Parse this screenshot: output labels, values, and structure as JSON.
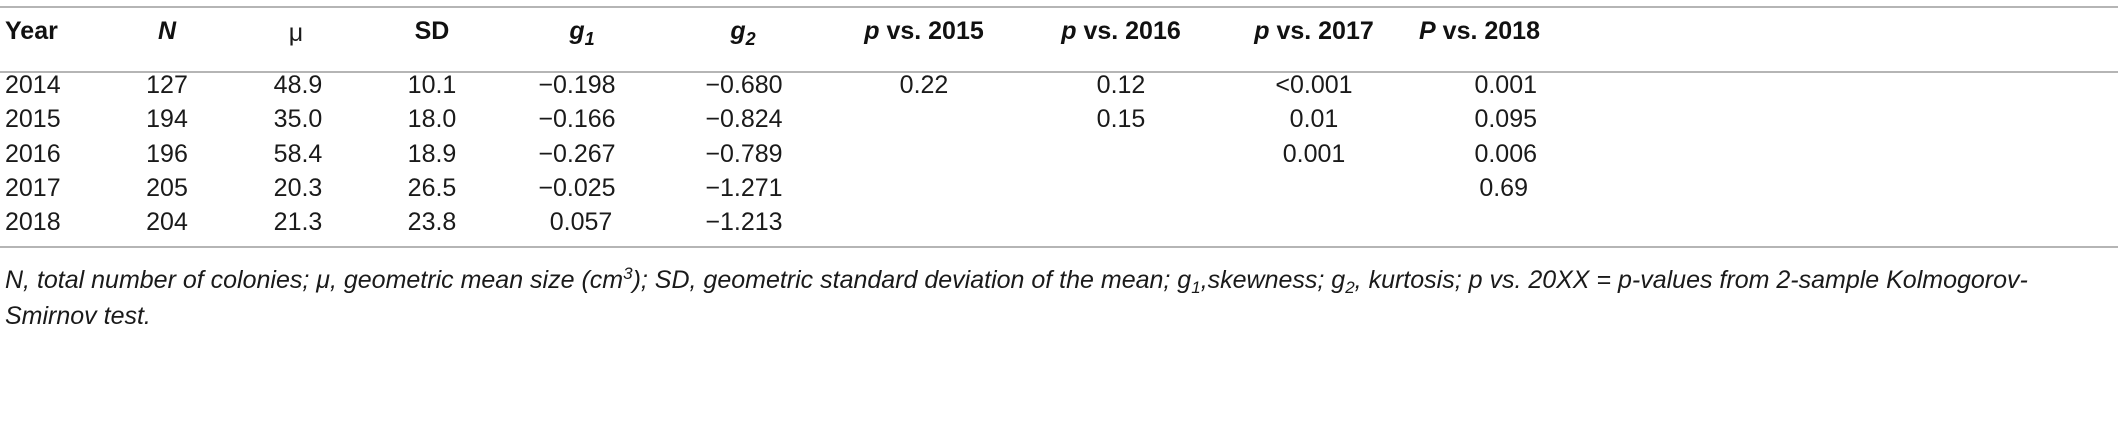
{
  "table": {
    "headers": {
      "year": "Year",
      "n": "N",
      "mu": "μ",
      "sd": "SD",
      "g1_base": "g",
      "g1_sub": "1",
      "g2_base": "g",
      "g2_sub": "2",
      "p2015_p": "p",
      "p2015_rest": " vs. 2015",
      "p2016_p": "p",
      "p2016_rest": " vs. 2016",
      "p2017_p": "p",
      "p2017_rest": " vs. 2017",
      "p2018_p": "P",
      "p2018_rest": " vs. 2018"
    },
    "rows": [
      {
        "year": "2014",
        "n": "127",
        "mu": "48.9",
        "sd": "10.1",
        "g1": "−0.198",
        "g2": "−0.680",
        "p2015": "0.22",
        "p2016": "0.12",
        "p2017": "<0.001",
        "p2018": "0.001"
      },
      {
        "year": "2015",
        "n": "194",
        "mu": "35.0",
        "sd": "18.0",
        "g1": "−0.166",
        "g2": "−0.824",
        "p2015": "",
        "p2016": "0.15",
        "p2017": "0.01",
        "p2018": "0.095"
      },
      {
        "year": "2016",
        "n": "196",
        "mu": "58.4",
        "sd": "18.9",
        "g1": "−0.267",
        "g2": "−0.789",
        "p2015": "",
        "p2016": "",
        "p2017": "0.001",
        "p2018": "0.006"
      },
      {
        "year": "2017",
        "n": "205",
        "mu": "20.3",
        "sd": "26.5",
        "g1": "−0.025",
        "g2": "−1.271",
        "p2015": "",
        "p2016": "",
        "p2017": "",
        "p2018": "0.69"
      },
      {
        "year": "2018",
        "n": "204",
        "mu": "21.3",
        "sd": "23.8",
        "g1": "0.057",
        "g2": "−1.213",
        "p2015": "",
        "p2016": "",
        "p2017": "",
        "p2018": ""
      }
    ]
  },
  "footnote": {
    "part1": "N, total number of colonies; μ, geometric mean size (cm",
    "sup3": "3",
    "part2": "); SD, geometric standard deviation of the mean; g",
    "sub1": "1",
    "part3": ",skewness; g",
    "sub2": "2",
    "part4": ", kurtosis; p vs. 20XX = p-values from 2-sample Kolmogorov-Smirnov test."
  }
}
